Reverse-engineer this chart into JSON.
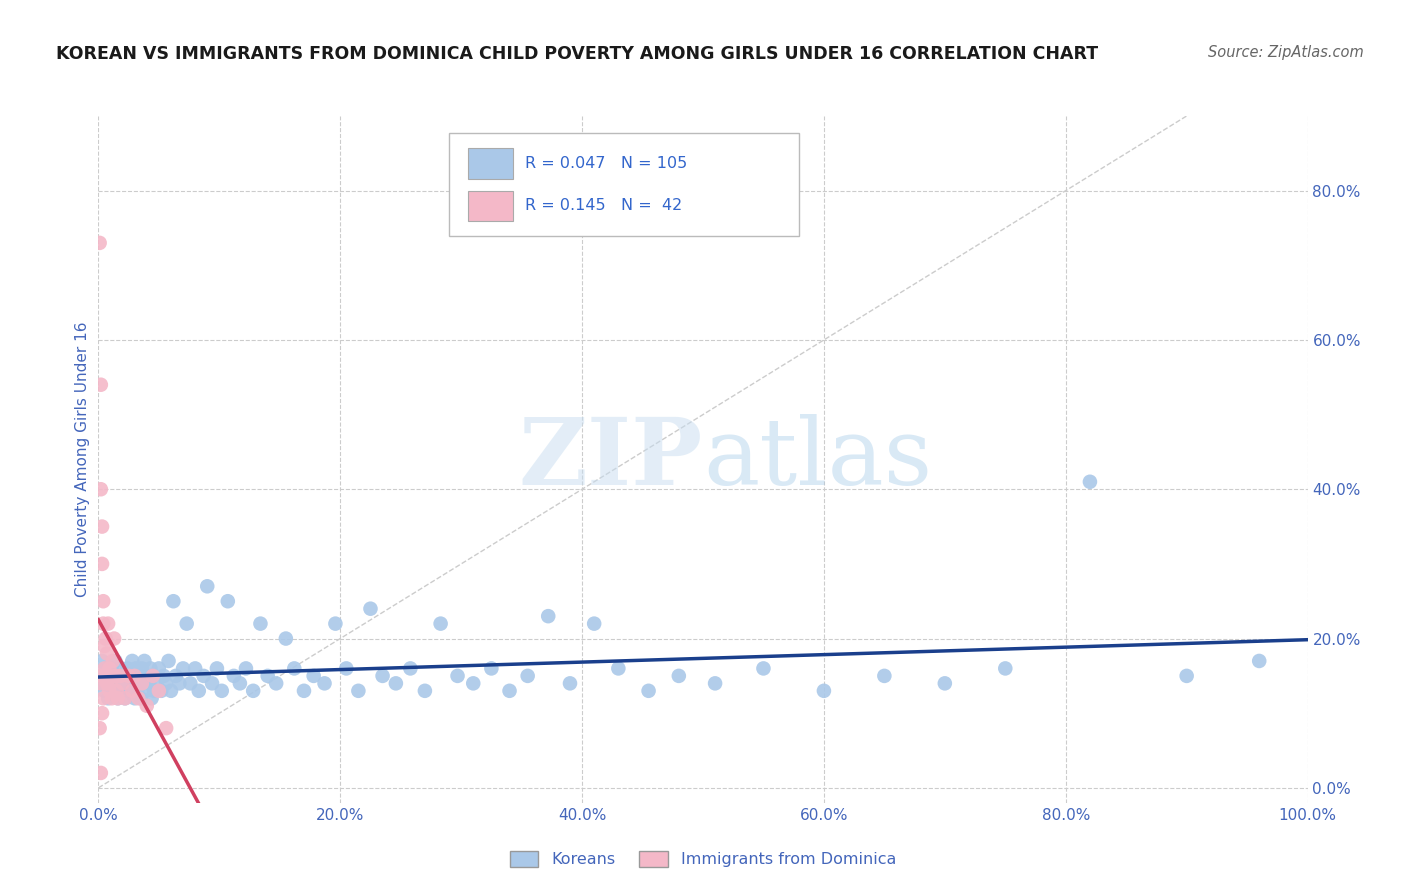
{
  "title": "KOREAN VS IMMIGRANTS FROM DOMINICA CHILD POVERTY AMONG GIRLS UNDER 16 CORRELATION CHART",
  "source": "Source: ZipAtlas.com",
  "ylabel": "Child Poverty Among Girls Under 16",
  "background_color": "#ffffff",
  "title_fontsize": 12.5,
  "title_color": "#1a1a1a",
  "axis_label_color": "#4466bb",
  "tick_label_color": "#4466bb",
  "grid_color": "#cccccc",
  "watermark_zip": "ZIP",
  "watermark_atlas": "atlas",
  "series": [
    {
      "label": "Koreans",
      "R": 0.047,
      "N": 105,
      "color": "#aac8e8",
      "trend_color": "#1a3f8c",
      "x": [
        0.002,
        0.003,
        0.004,
        0.005,
        0.006,
        0.007,
        0.008,
        0.009,
        0.01,
        0.011,
        0.012,
        0.013,
        0.014,
        0.015,
        0.016,
        0.017,
        0.018,
        0.019,
        0.02,
        0.021,
        0.022,
        0.023,
        0.024,
        0.025,
        0.026,
        0.027,
        0.028,
        0.03,
        0.031,
        0.032,
        0.033,
        0.034,
        0.035,
        0.036,
        0.037,
        0.038,
        0.039,
        0.04,
        0.042,
        0.043,
        0.044,
        0.045,
        0.046,
        0.048,
        0.05,
        0.052,
        0.054,
        0.056,
        0.058,
        0.06,
        0.062,
        0.064,
        0.067,
        0.07,
        0.073,
        0.076,
        0.08,
        0.083,
        0.087,
        0.09,
        0.094,
        0.098,
        0.102,
        0.107,
        0.112,
        0.117,
        0.122,
        0.128,
        0.134,
        0.14,
        0.147,
        0.155,
        0.162,
        0.17,
        0.178,
        0.187,
        0.196,
        0.205,
        0.215,
        0.225,
        0.235,
        0.246,
        0.258,
        0.27,
        0.283,
        0.297,
        0.31,
        0.325,
        0.34,
        0.355,
        0.372,
        0.39,
        0.41,
        0.43,
        0.455,
        0.48,
        0.51,
        0.55,
        0.6,
        0.65,
        0.7,
        0.75,
        0.82,
        0.9,
        0.96
      ],
      "y": [
        0.14,
        0.17,
        0.15,
        0.13,
        0.16,
        0.14,
        0.12,
        0.15,
        0.14,
        0.16,
        0.13,
        0.15,
        0.17,
        0.14,
        0.12,
        0.15,
        0.13,
        0.16,
        0.14,
        0.15,
        0.12,
        0.14,
        0.16,
        0.13,
        0.15,
        0.14,
        0.17,
        0.12,
        0.16,
        0.13,
        0.15,
        0.14,
        0.12,
        0.16,
        0.14,
        0.17,
        0.13,
        0.15,
        0.14,
        0.16,
        0.12,
        0.15,
        0.13,
        0.14,
        0.16,
        0.13,
        0.15,
        0.14,
        0.17,
        0.13,
        0.25,
        0.15,
        0.14,
        0.16,
        0.22,
        0.14,
        0.16,
        0.13,
        0.15,
        0.27,
        0.14,
        0.16,
        0.13,
        0.25,
        0.15,
        0.14,
        0.16,
        0.13,
        0.22,
        0.15,
        0.14,
        0.2,
        0.16,
        0.13,
        0.15,
        0.14,
        0.22,
        0.16,
        0.13,
        0.24,
        0.15,
        0.14,
        0.16,
        0.13,
        0.22,
        0.15,
        0.14,
        0.16,
        0.13,
        0.15,
        0.23,
        0.14,
        0.22,
        0.16,
        0.13,
        0.15,
        0.14,
        0.16,
        0.13,
        0.15,
        0.14,
        0.16,
        0.41,
        0.15,
        0.17
      ]
    },
    {
      "label": "Immigrants from Dominica",
      "R": 0.145,
      "N": 42,
      "color": "#f4b8c8",
      "trend_color": "#d04060",
      "x": [
        0.001,
        0.002,
        0.002,
        0.003,
        0.003,
        0.004,
        0.004,
        0.005,
        0.005,
        0.006,
        0.006,
        0.007,
        0.007,
        0.008,
        0.008,
        0.009,
        0.009,
        0.01,
        0.011,
        0.012,
        0.013,
        0.014,
        0.015,
        0.016,
        0.018,
        0.02,
        0.022,
        0.025,
        0.028,
        0.03,
        0.033,
        0.036,
        0.04,
        0.045,
        0.05,
        0.056,
        0.002,
        0.003,
        0.004,
        0.001,
        0.003,
        0.002
      ],
      "y": [
        0.73,
        0.54,
        0.4,
        0.35,
        0.3,
        0.25,
        0.22,
        0.19,
        0.16,
        0.15,
        0.2,
        0.14,
        0.18,
        0.15,
        0.22,
        0.13,
        0.16,
        0.14,
        0.12,
        0.17,
        0.2,
        0.15,
        0.13,
        0.12,
        0.15,
        0.14,
        0.12,
        0.15,
        0.13,
        0.15,
        0.12,
        0.14,
        0.11,
        0.15,
        0.13,
        0.08,
        0.14,
        0.1,
        0.12,
        0.08,
        0.15,
        0.02
      ]
    }
  ],
  "xlim": [
    0.0,
    1.0
  ],
  "ylim": [
    -0.02,
    0.9
  ],
  "xticks": [
    0.0,
    0.2,
    0.4,
    0.6,
    0.8,
    1.0
  ],
  "xtick_labels": [
    "0.0%",
    "20.0%",
    "40.0%",
    "60.0%",
    "80.0%",
    "100.0%"
  ],
  "yticks_right": [
    0.0,
    0.2,
    0.4,
    0.6,
    0.8
  ],
  "ytick_labels_right": [
    "0.0%",
    "20.0%",
    "40.0%",
    "60.0%",
    "80.0%"
  ],
  "hgrid_values": [
    0.0,
    0.2,
    0.4,
    0.6,
    0.8
  ],
  "diagonal_color": "#cccccc",
  "diagonal_style": "--",
  "diagonal_linewidth": 1.0
}
